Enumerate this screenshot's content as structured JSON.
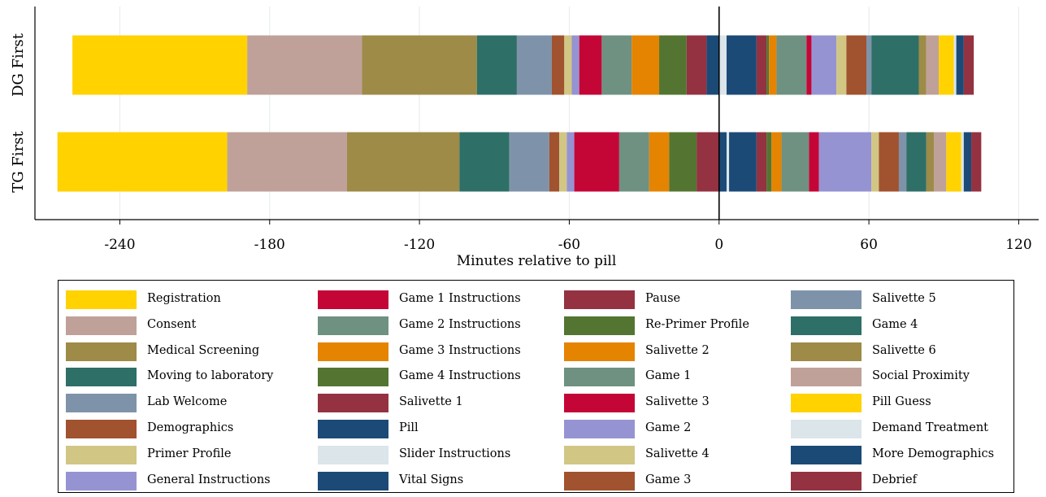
{
  "chart_data": {
    "type": "bar",
    "orientation": "horizontal-stacked",
    "xlabel": "Minutes relative to pill",
    "ylabel": "",
    "xlim": [
      -274,
      128
    ],
    "xticks": [
      -240,
      -180,
      -120,
      -60,
      0,
      60,
      120
    ],
    "reference_line_x": 0,
    "grid": "vertical",
    "legend_position": "bottom",
    "categories": [
      "DG First",
      "TG First"
    ],
    "segment_colors": {
      "Registration": "#FFD200",
      "Consent": "#BFA199",
      "Medical Screening": "#9D8B47",
      "Moving to laboratory": "#2E6F67",
      "Lab Welcome": "#7E93A9",
      "Demographics": "#A1522E",
      "Primer Profile": "#D1C684",
      "General Instructions": "#9693D3",
      "Game 1 Instructions": "#C40637",
      "Game 2 Instructions": "#6E9181",
      "Game 3 Instructions": "#E58400",
      "Game 4 Instructions": "#537531",
      "Salivette 1": "#943241",
      "Pill": "#1B4A77",
      "Slider Instructions": "#DBE5EA",
      "Vital Signs": "#1B4A77",
      "Pause": "#943241",
      "Re-Primer Profile": "#537531",
      "Salivette 2": "#E58400",
      "Game 1": "#6E9181",
      "Salivette 3": "#C40637",
      "Game 2": "#9693D3",
      "Salivette 4": "#D1C684",
      "Game 3": "#A1522E",
      "Salivette 5": "#7E93A9",
      "Game 4": "#2E6F67",
      "Salivette 6": "#9D8B47",
      "Social Proximity": "#BFA199",
      "Pill Guess": "#FFD200",
      "Demand Treatment": "#DBE5EA",
      "More Demographics": "#1B4A77",
      "Debrief": "#943241"
    },
    "series": [
      {
        "category": "DG First",
        "segments": [
          {
            "label": "Registration",
            "start": -259,
            "end": -189
          },
          {
            "label": "Consent",
            "start": -189,
            "end": -143
          },
          {
            "label": "Medical Screening",
            "start": -143,
            "end": -97
          },
          {
            "label": "Moving to laboratory",
            "start": -97,
            "end": -81
          },
          {
            "label": "Lab Welcome",
            "start": -81,
            "end": -67
          },
          {
            "label": "Demographics",
            "start": -67,
            "end": -62
          },
          {
            "label": "Primer Profile",
            "start": -62,
            "end": -59
          },
          {
            "label": "General Instructions",
            "start": -59,
            "end": -56
          },
          {
            "label": "Game 1 Instructions",
            "start": -56,
            "end": -47
          },
          {
            "label": "Game 2 Instructions",
            "start": -47,
            "end": -35
          },
          {
            "label": "Game 3 Instructions",
            "start": -35,
            "end": -24
          },
          {
            "label": "Game 4 Instructions",
            "start": -24,
            "end": -13
          },
          {
            "label": "Salivette 1",
            "start": -13,
            "end": -5
          },
          {
            "label": "Pill",
            "start": -5,
            "end": 0
          },
          {
            "label": "Slider Instructions",
            "start": 0,
            "end": 3
          },
          {
            "label": "Vital Signs",
            "start": 3,
            "end": 15
          },
          {
            "label": "Pause",
            "start": 15,
            "end": 19
          },
          {
            "label": "Re-Primer Profile",
            "start": 19,
            "end": 20
          },
          {
            "label": "Salivette 2",
            "start": 20,
            "end": 23
          },
          {
            "label": "Game 1",
            "start": 23,
            "end": 35
          },
          {
            "label": "Salivette 3",
            "start": 35,
            "end": 37
          },
          {
            "label": "Game 2",
            "start": 37,
            "end": 47
          },
          {
            "label": "Salivette 4",
            "start": 47,
            "end": 51
          },
          {
            "label": "Game 3",
            "start": 51,
            "end": 59
          },
          {
            "label": "Salivette 5",
            "start": 59,
            "end": 61
          },
          {
            "label": "Game 4",
            "start": 61,
            "end": 80
          },
          {
            "label": "Salivette 6",
            "start": 80,
            "end": 83
          },
          {
            "label": "Social Proximity",
            "start": 83,
            "end": 88
          },
          {
            "label": "Pill Guess",
            "start": 88,
            "end": 94
          },
          {
            "label": "Demand Treatment",
            "start": 94,
            "end": 95
          },
          {
            "label": "More Demographics",
            "start": 95,
            "end": 98
          },
          {
            "label": "Debrief",
            "start": 98,
            "end": 102
          }
        ]
      },
      {
        "category": "TG First",
        "segments": [
          {
            "label": "Registration",
            "start": -265,
            "end": -197
          },
          {
            "label": "Consent",
            "start": -197,
            "end": -149
          },
          {
            "label": "Medical Screening",
            "start": -149,
            "end": -104
          },
          {
            "label": "Moving to laboratory",
            "start": -104,
            "end": -84
          },
          {
            "label": "Lab Welcome",
            "start": -84,
            "end": -68
          },
          {
            "label": "Demographics",
            "start": -68,
            "end": -64
          },
          {
            "label": "Primer Profile",
            "start": -64,
            "end": -61
          },
          {
            "label": "General Instructions",
            "start": -61,
            "end": -58
          },
          {
            "label": "Game 1 Instructions",
            "start": -58,
            "end": -40
          },
          {
            "label": "Game 2 Instructions",
            "start": -40,
            "end": -28
          },
          {
            "label": "Game 3 Instructions",
            "start": -28,
            "end": -20
          },
          {
            "label": "Game 4 Instructions",
            "start": -20,
            "end": -9
          },
          {
            "label": "Salivette 1",
            "start": -9,
            "end": 0
          },
          {
            "label": "Pill",
            "start": 0,
            "end": 3
          },
          {
            "label": "Slider Instructions",
            "start": 3,
            "end": 4
          },
          {
            "label": "Vital Signs",
            "start": 4,
            "end": 15
          },
          {
            "label": "Pause",
            "start": 15,
            "end": 19
          },
          {
            "label": "Re-Primer Profile",
            "start": 19,
            "end": 21
          },
          {
            "label": "Salivette 2",
            "start": 21,
            "end": 25
          },
          {
            "label": "Game 1",
            "start": 25,
            "end": 36
          },
          {
            "label": "Salivette 3",
            "start": 36,
            "end": 40
          },
          {
            "label": "Game 2",
            "start": 40,
            "end": 61
          },
          {
            "label": "Salivette 4",
            "start": 61,
            "end": 64
          },
          {
            "label": "Game 3",
            "start": 64,
            "end": 72
          },
          {
            "label": "Salivette 5",
            "start": 72,
            "end": 75
          },
          {
            "label": "Game 4",
            "start": 75,
            "end": 83
          },
          {
            "label": "Salivette 6",
            "start": 83,
            "end": 86
          },
          {
            "label": "Social Proximity",
            "start": 86,
            "end": 91
          },
          {
            "label": "Pill Guess",
            "start": 91,
            "end": 97
          },
          {
            "label": "Demand Treatment",
            "start": 97,
            "end": 98
          },
          {
            "label": "More Demographics",
            "start": 98,
            "end": 101
          },
          {
            "label": "Debrief",
            "start": 101,
            "end": 105
          }
        ]
      }
    ],
    "legend": [
      [
        "Registration",
        "Consent",
        "Medical Screening",
        "Moving to laboratory",
        "Lab Welcome",
        "Demographics",
        "Primer Profile",
        "General Instructions"
      ],
      [
        "Game 1 Instructions",
        "Game 2 Instructions",
        "Game 3 Instructions",
        "Game 4 Instructions",
        "Salivette 1",
        "Pill",
        "Slider Instructions",
        "Vital Signs"
      ],
      [
        "Pause",
        "Re-Primer Profile",
        "Salivette 2",
        "Game 1",
        "Salivette 3",
        "Game 2",
        "Salivette 4",
        "Game 3"
      ],
      [
        "Salivette 5",
        "Game 4",
        "Salivette 6",
        "Social Proximity",
        "Pill Guess",
        "Demand Treatment",
        "More Demographics",
        "Debrief"
      ]
    ]
  }
}
